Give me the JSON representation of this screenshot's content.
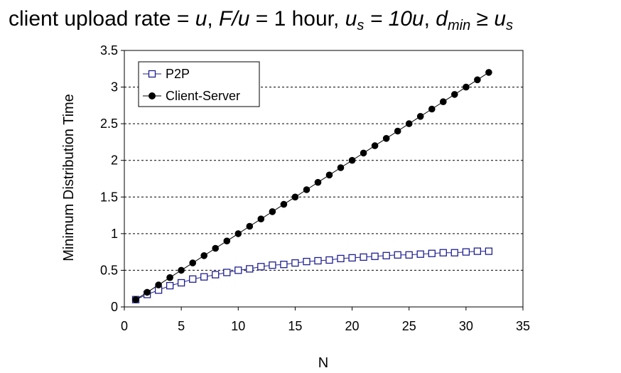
{
  "title": {
    "t1": "client upload rate = ",
    "t2": "u",
    "t3": ",  ",
    "t4": "F/u",
    "t5": " = 1 hour,  ",
    "t6": "u",
    "t7": "s",
    "t8": " = 10u",
    "t9": ",  ",
    "t10": "d",
    "t11": "min",
    "t12": " ≥ ",
    "t13": "u",
    "t14": "s"
  },
  "chart_data": {
    "type": "line",
    "xlabel": "N",
    "ylabel": "Minimum Distribution Time",
    "xlim": [
      0,
      35
    ],
    "ylim": [
      0,
      3.5
    ],
    "xticks": [
      0,
      5,
      10,
      15,
      20,
      25,
      30,
      35
    ],
    "yticks": [
      0,
      0.5,
      1,
      1.5,
      2,
      2.5,
      3,
      3.5
    ],
    "grid": "horizontal dashed",
    "legend_position": "top-left",
    "x": [
      1,
      2,
      3,
      4,
      5,
      6,
      7,
      8,
      9,
      10,
      11,
      12,
      13,
      14,
      15,
      16,
      17,
      18,
      19,
      20,
      21,
      22,
      23,
      24,
      25,
      26,
      27,
      28,
      29,
      30,
      31,
      32
    ],
    "series": [
      {
        "name": "P2P",
        "marker": "open-square",
        "color": "#1f1f8f",
        "values": [
          0.1,
          0.17,
          0.23,
          0.29,
          0.33,
          0.38,
          0.41,
          0.44,
          0.47,
          0.5,
          0.52,
          0.55,
          0.57,
          0.58,
          0.6,
          0.62,
          0.63,
          0.64,
          0.66,
          0.67,
          0.68,
          0.69,
          0.7,
          0.71,
          0.71,
          0.72,
          0.73,
          0.74,
          0.74,
          0.75,
          0.76,
          0.76
        ]
      },
      {
        "name": "Client-Server",
        "marker": "filled-circle",
        "color": "#000000",
        "values": [
          0.1,
          0.2,
          0.3,
          0.4,
          0.5,
          0.6,
          0.7,
          0.8,
          0.9,
          1.0,
          1.1,
          1.2,
          1.3,
          1.4,
          1.5,
          1.6,
          1.7,
          1.8,
          1.9,
          2.0,
          2.1,
          2.2,
          2.3,
          2.4,
          2.5,
          2.6,
          2.7,
          2.8,
          2.9,
          3.0,
          3.1,
          3.2
        ]
      }
    ]
  }
}
